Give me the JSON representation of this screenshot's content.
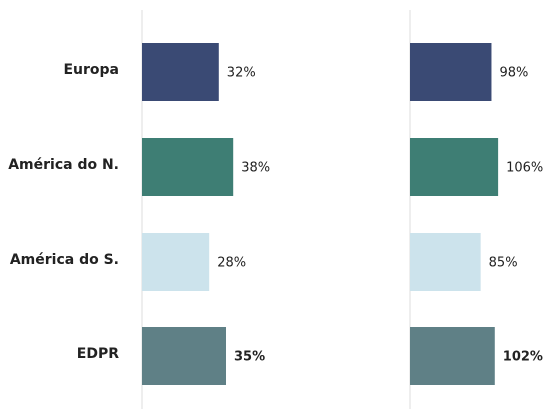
{
  "chart_data": [
    {
      "type": "bar",
      "orientation": "horizontal",
      "categories": [
        "Europa",
        "América do N.",
        "América do S.",
        "EDPR"
      ],
      "values": [
        32,
        38,
        28,
        35
      ],
      "value_labels": [
        "32%",
        "38%",
        "28%",
        "35%"
      ],
      "colors": [
        "#3a4a74",
        "#3e7e74",
        "#cce3ec",
        "#5f8086"
      ],
      "xlim": [
        0,
        50
      ]
    },
    {
      "type": "bar",
      "orientation": "horizontal",
      "values": [
        98,
        106,
        85,
        102
      ],
      "value_labels": [
        "98%",
        "106%",
        "85%",
        "102%"
      ],
      "colors": [
        "#3a4a74",
        "#3e7e74",
        "#cce3ec",
        "#5f8086"
      ],
      "xlim": [
        0,
        160
      ]
    }
  ]
}
